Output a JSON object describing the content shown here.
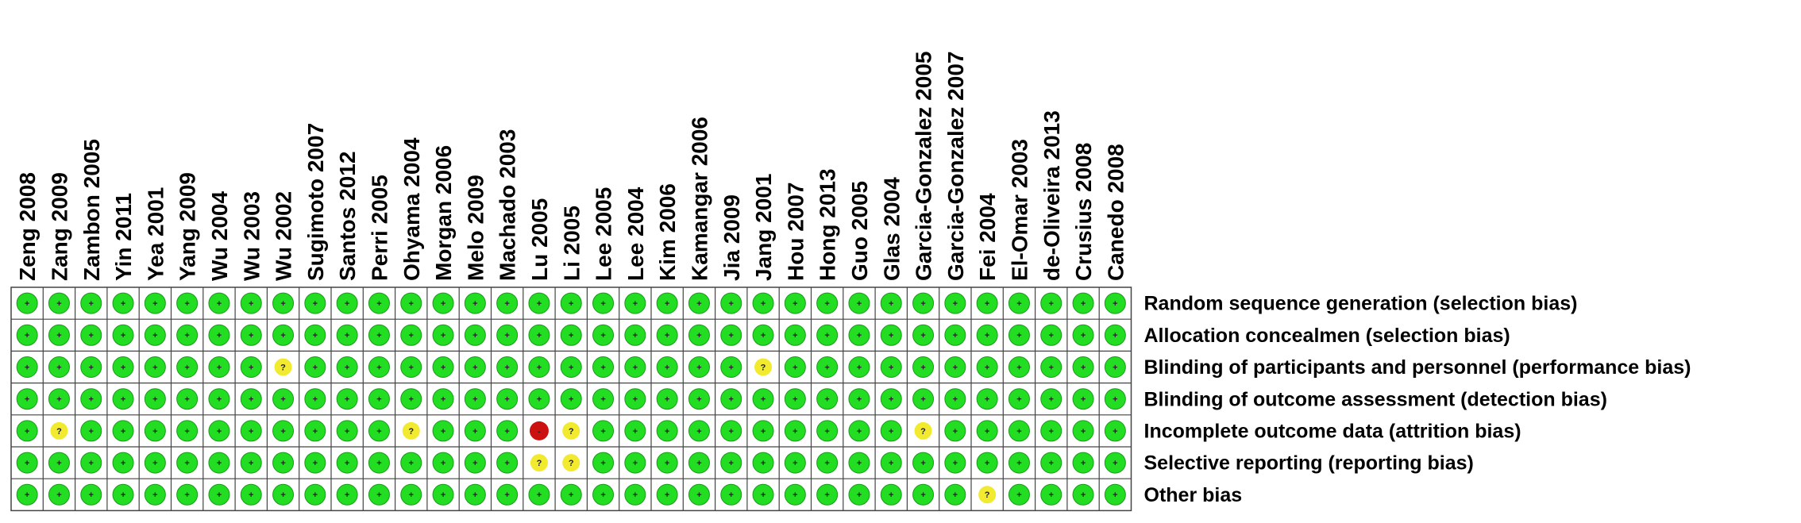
{
  "studies": [
    "Zeng 2008",
    "Zang 2009",
    "Zambon 2005",
    "Yin 2011",
    "Yea 2001",
    "Yang 2009",
    "Wu 2004",
    "Wu 2003",
    "Wu 2002",
    "Sugimoto 2007",
    "Santos 2012",
    "Perri 2005",
    "Ohyama 2004",
    "Morgan 2006",
    "Melo 2009",
    "Machado 2003",
    "Lu 2005",
    "Li 2005",
    "Lee 2005",
    "Lee 2004",
    "Kim 2006",
    "Kamangar 2006",
    "Jia 2009",
    "Jang 2001",
    "Hou 2007",
    "Hong 2013",
    "Guo 2005",
    "Glas 2004",
    "Garcia-Gonzalez 2005",
    "Garcia-Gonzalez 2007",
    "Fei 2004",
    "El-Omar 2003",
    "de-Oliveira 2013",
    "Crusius 2008",
    "Canedo 2008"
  ],
  "domains": [
    "Random sequence generation (selection bias)",
    "Allocation concealmen (selection bias)",
    "Blinding of participants and personnel (performance bias)",
    "Blinding of outcome assessment (detection bias)",
    "Incomplete outcome data (attrition bias)",
    "Selective reporting (reporting bias)",
    "Other bias"
  ],
  "colors": {
    "+": "#22dd22",
    "?": "#f2ea2e",
    "-": "#cc1111"
  },
  "grid": [
    [
      "+",
      "+",
      "+",
      "+",
      "+",
      "+",
      "+",
      "+",
      "+",
      "+",
      "+",
      "+",
      "+",
      "+",
      "+",
      "+",
      "+",
      "+",
      "+",
      "+",
      "+",
      "+",
      "+",
      "+",
      "+",
      "+",
      "+",
      "+",
      "+",
      "+",
      "+",
      "+",
      "+",
      "+",
      "+"
    ],
    [
      "+",
      "+",
      "+",
      "+",
      "+",
      "+",
      "+",
      "+",
      "+",
      "+",
      "+",
      "+",
      "+",
      "+",
      "+",
      "+",
      "+",
      "+",
      "+",
      "+",
      "+",
      "+",
      "+",
      "+",
      "+",
      "+",
      "+",
      "+",
      "+",
      "+",
      "+",
      "+",
      "+",
      "+",
      "+"
    ],
    [
      "+",
      "+",
      "+",
      "+",
      "+",
      "+",
      "+",
      "+",
      "?",
      "+",
      "+",
      "+",
      "+",
      "+",
      "+",
      "+",
      "+",
      "+",
      "+",
      "+",
      "+",
      "+",
      "+",
      "?",
      "+",
      "+",
      "+",
      "+",
      "+",
      "+",
      "+",
      "+",
      "+",
      "+",
      "+"
    ],
    [
      "+",
      "+",
      "+",
      "+",
      "+",
      "+",
      "+",
      "+",
      "+",
      "+",
      "+",
      "+",
      "+",
      "+",
      "+",
      "+",
      "+",
      "+",
      "+",
      "+",
      "+",
      "+",
      "+",
      "+",
      "+",
      "+",
      "+",
      "+",
      "+",
      "+",
      "+",
      "+",
      "+",
      "+",
      "+"
    ],
    [
      "+",
      "?",
      "+",
      "+",
      "+",
      "+",
      "+",
      "+",
      "+",
      "+",
      "+",
      "+",
      "?",
      "+",
      "+",
      "+",
      "-",
      "?",
      "+",
      "+",
      "+",
      "+",
      "+",
      "+",
      "+",
      "+",
      "+",
      "+",
      "?",
      "+",
      "+",
      "+",
      "+",
      "+",
      "+"
    ],
    [
      "+",
      "+",
      "+",
      "+",
      "+",
      "+",
      "+",
      "+",
      "+",
      "+",
      "+",
      "+",
      "+",
      "+",
      "+",
      "+",
      "?",
      "?",
      "+",
      "+",
      "+",
      "+",
      "+",
      "+",
      "+",
      "+",
      "+",
      "+",
      "+",
      "+",
      "+",
      "+",
      "+",
      "+",
      "+"
    ],
    [
      "+",
      "+",
      "+",
      "+",
      "+",
      "+",
      "+",
      "+",
      "+",
      "+",
      "+",
      "+",
      "+",
      "+",
      "+",
      "+",
      "+",
      "+",
      "+",
      "+",
      "+",
      "+",
      "+",
      "+",
      "+",
      "+",
      "+",
      "+",
      "+",
      "+",
      "?",
      "+",
      "+",
      "+",
      "+"
    ]
  ]
}
